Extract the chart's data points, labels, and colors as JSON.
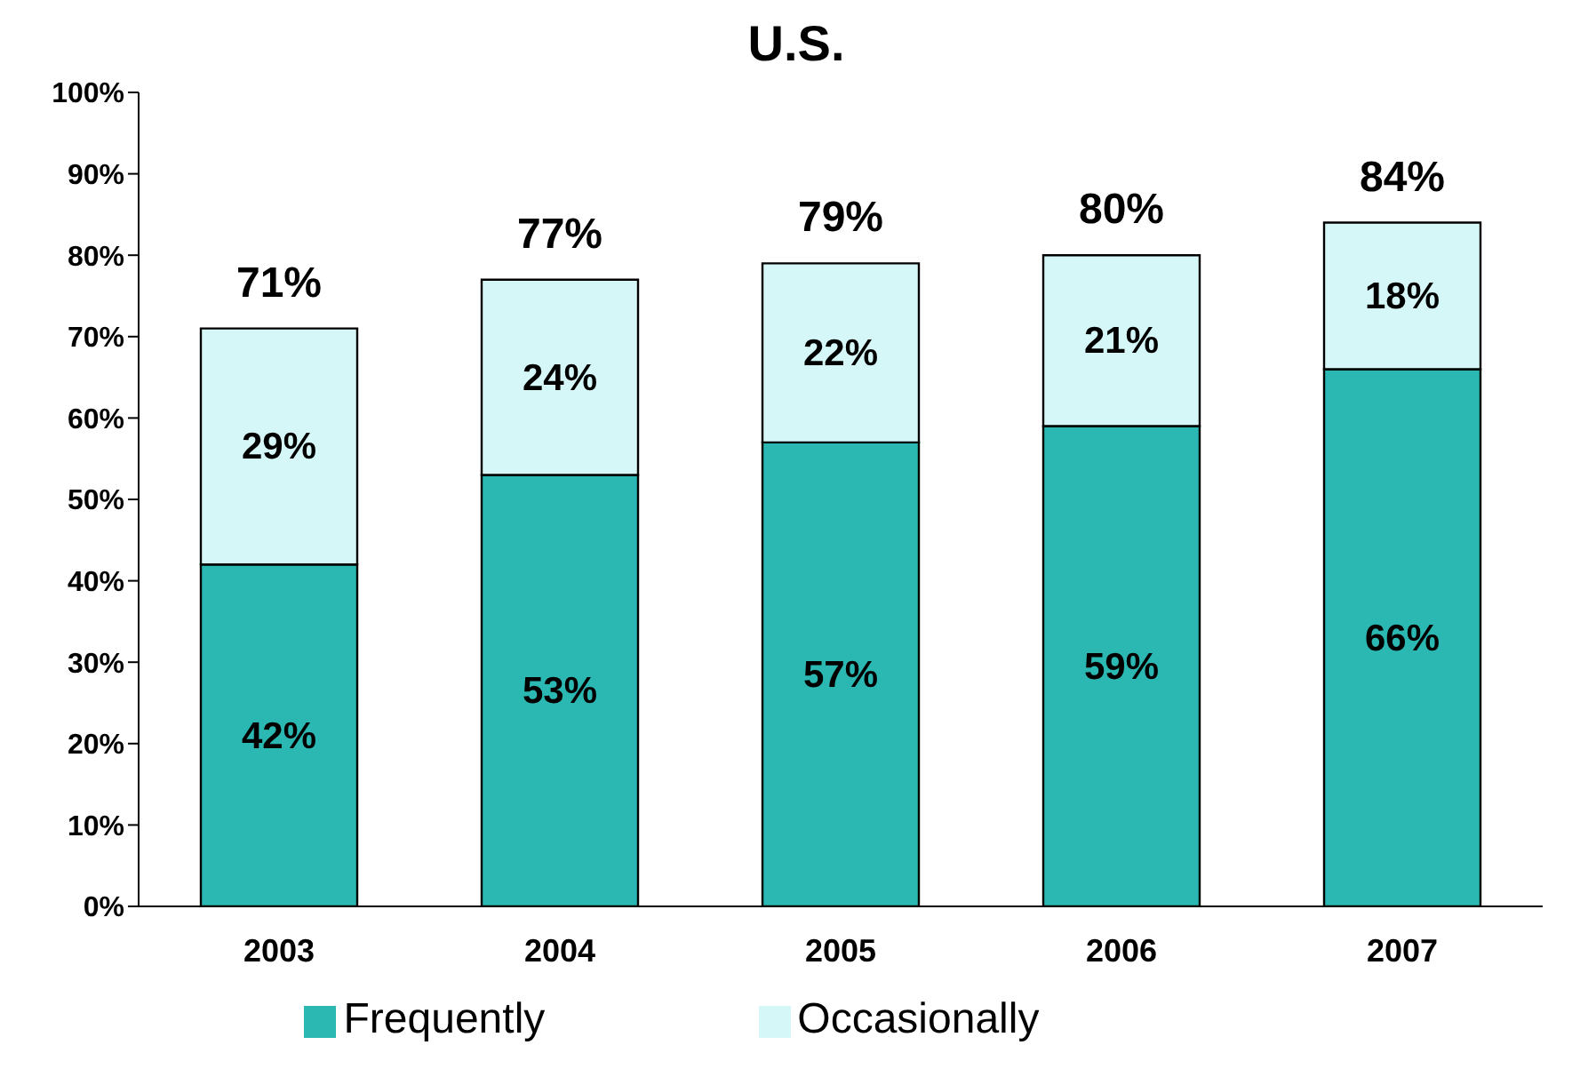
{
  "chart_data": {
    "type": "bar",
    "title": "U.S.",
    "stacked": true,
    "categories": [
      "2003",
      "2004",
      "2005",
      "2006",
      "2007"
    ],
    "series": [
      {
        "name": "Frequently",
        "color": "#2bb8b2",
        "values": [
          42,
          53,
          57,
          59,
          66
        ],
        "value_labels": [
          "42%",
          "53%",
          "57%",
          "59%",
          "66%"
        ]
      },
      {
        "name": "Occasionally",
        "color": "#d6f7f7",
        "values": [
          29,
          24,
          22,
          21,
          18
        ],
        "value_labels": [
          "29%",
          "24%",
          "22%",
          "21%",
          "18%"
        ]
      }
    ],
    "totals": [
      "71%",
      "77%",
      "79%",
      "80%",
      "84%"
    ],
    "ylim": [
      0,
      100
    ],
    "yticks": [
      {
        "value": 0,
        "label": "0%"
      },
      {
        "value": 10,
        "label": "10%"
      },
      {
        "value": 20,
        "label": "20%"
      },
      {
        "value": 30,
        "label": "30%"
      },
      {
        "value": 40,
        "label": "40%"
      },
      {
        "value": 50,
        "label": "50%"
      },
      {
        "value": 60,
        "label": "60%"
      },
      {
        "value": 70,
        "label": "70%"
      },
      {
        "value": 80,
        "label": "80%"
      },
      {
        "value": 90,
        "label": "90%"
      },
      {
        "value": 100,
        "label": "100%"
      }
    ],
    "grid": false,
    "legend": "bottom"
  }
}
